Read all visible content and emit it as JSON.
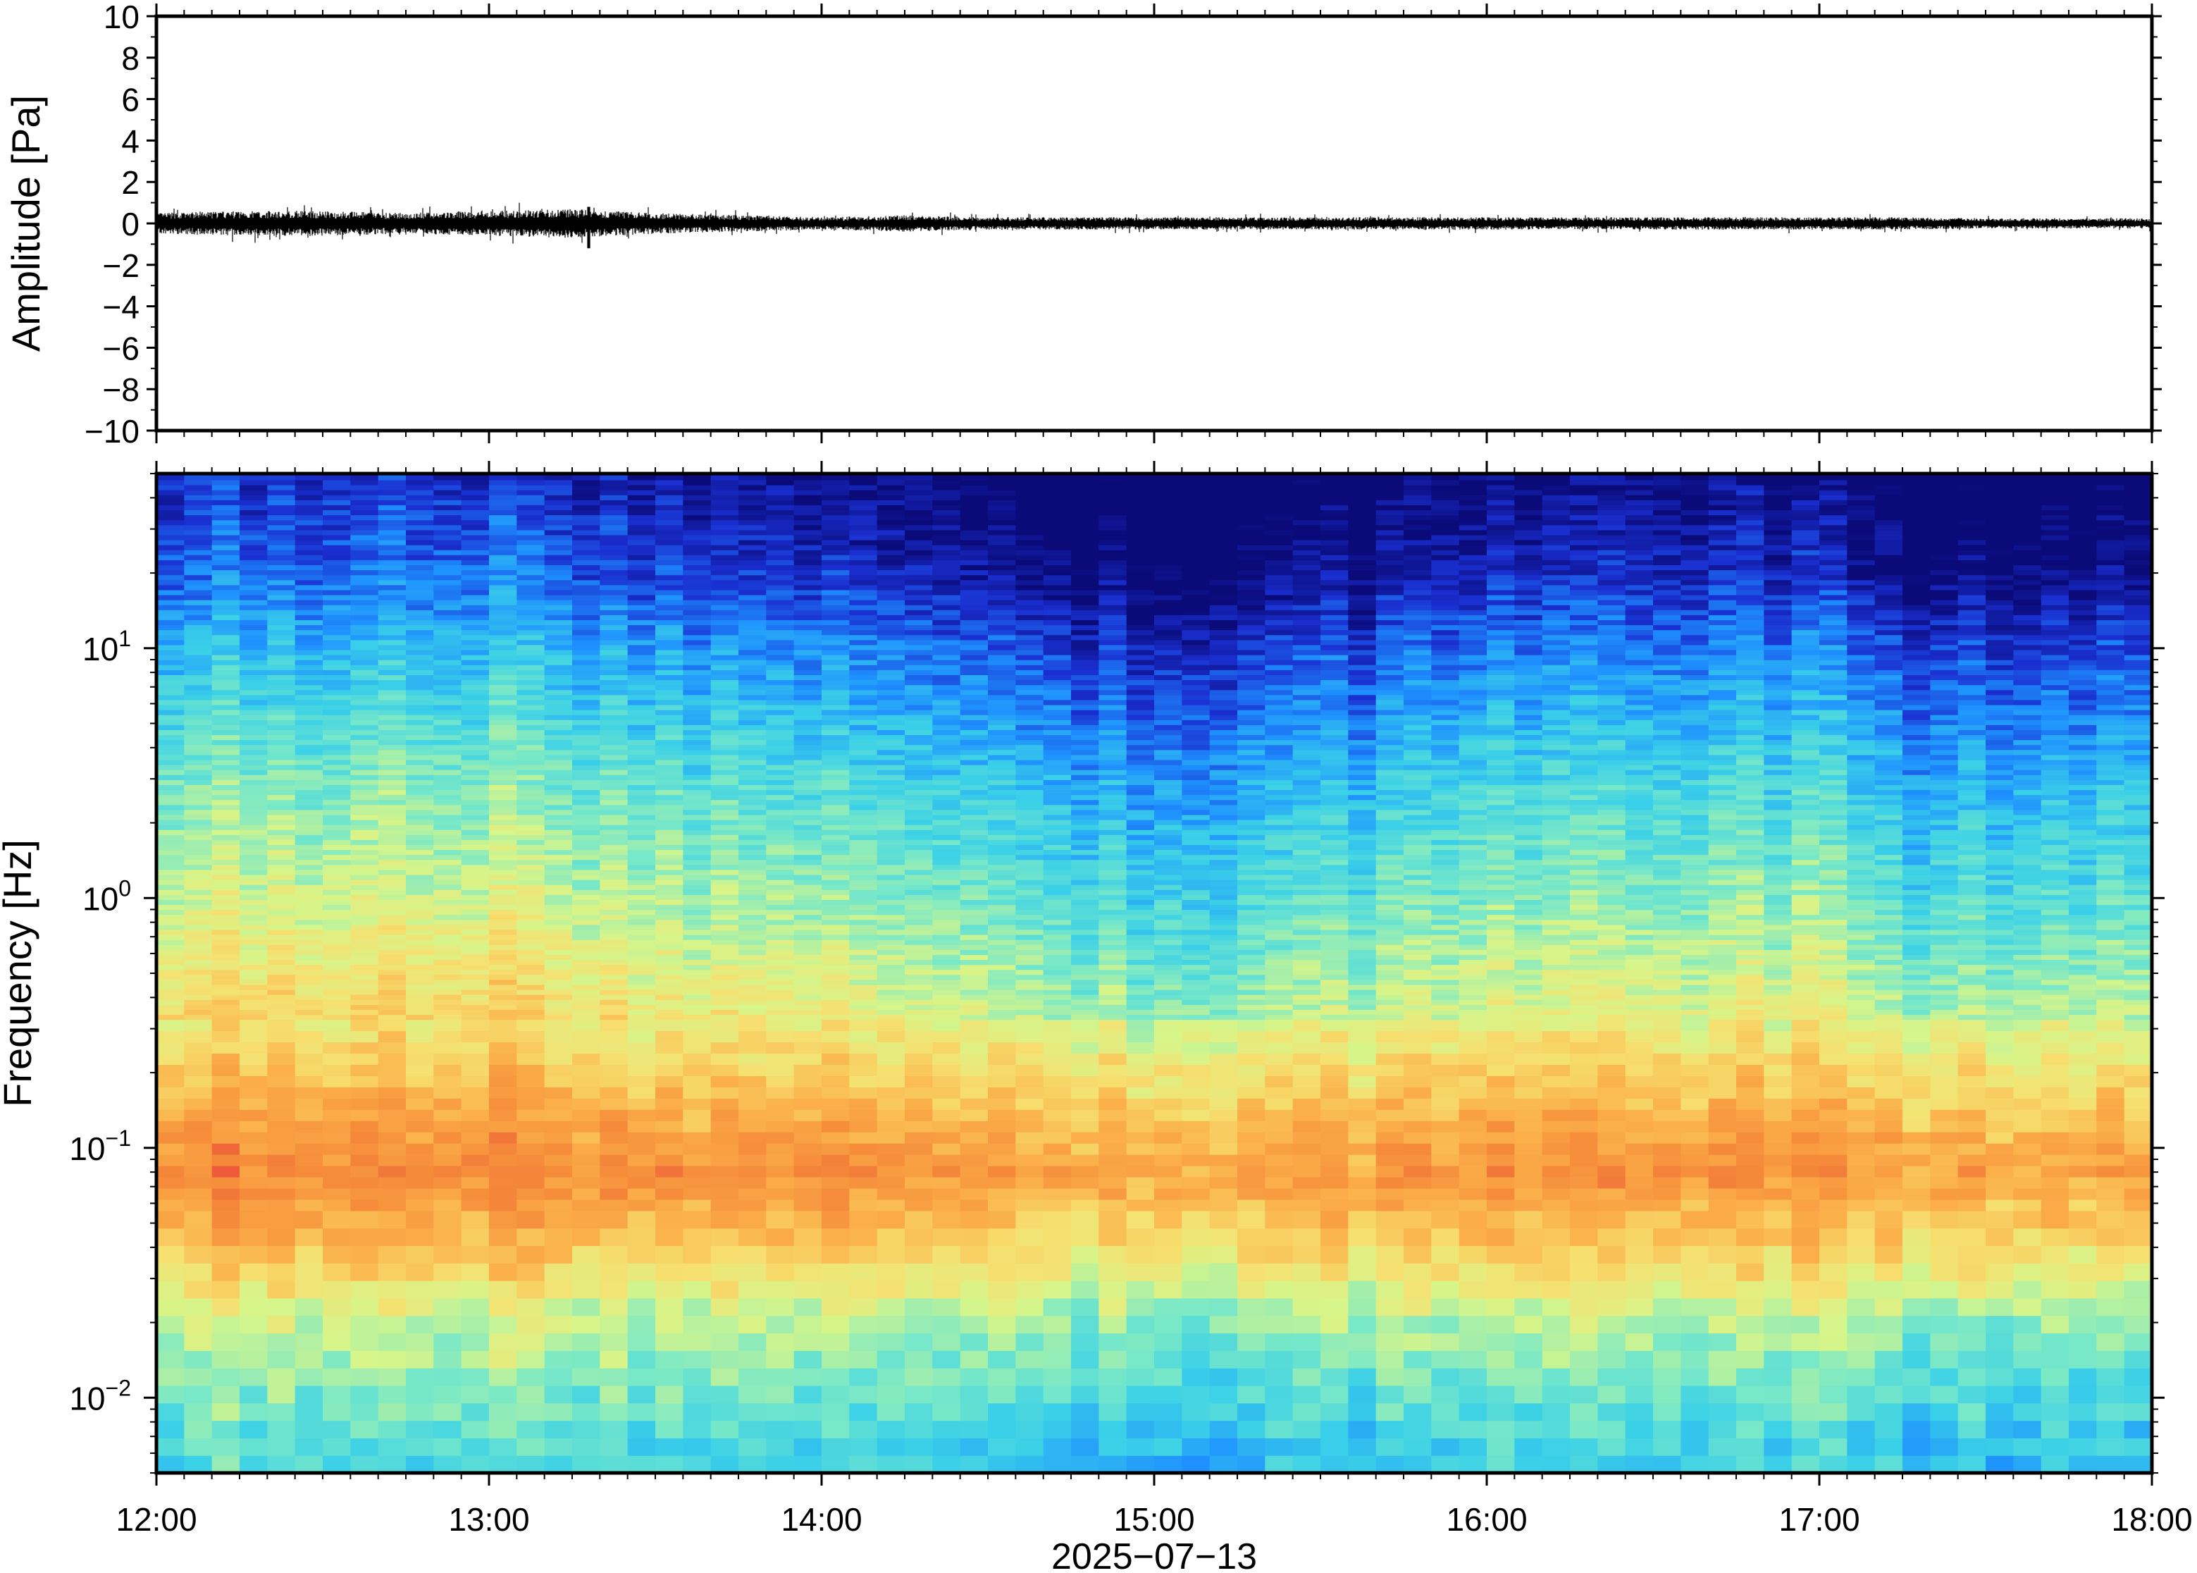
{
  "chart_data": [
    {
      "type": "line",
      "title": "",
      "xlabel": "",
      "ylabel": "Amplitude [Pa]",
      "x_tick_labels": [
        "12:00",
        "13:00",
        "14:00",
        "15:00",
        "16:00",
        "17:00",
        "18:00"
      ],
      "y_tick_labels": [
        "10",
        "8",
        "6",
        "4",
        "2",
        "0",
        "−2",
        "−4",
        "−6",
        "−8",
        "−10"
      ],
      "ylim": [
        -10,
        10
      ],
      "xlim": [
        "2025-07-13 12:00",
        "2025-07-13 18:00"
      ],
      "grid": false,
      "series": [
        {
          "x_hours": [
            12.0,
            12.25,
            12.5,
            12.75,
            13.0,
            13.25,
            13.5,
            13.75,
            14.0,
            14.25,
            14.5,
            14.75,
            15.0,
            15.25,
            15.5,
            15.75,
            16.0,
            16.25,
            16.5,
            16.75,
            17.0,
            17.25,
            17.5,
            17.75,
            18.0
          ],
          "envelope_pa": [
            0.5,
            0.6,
            0.6,
            0.5,
            0.6,
            0.7,
            0.5,
            0.4,
            0.3,
            0.4,
            0.3,
            0.3,
            0.3,
            0.3,
            0.3,
            0.3,
            0.3,
            0.3,
            0.3,
            0.3,
            0.3,
            0.3,
            0.25,
            0.25,
            0.25
          ],
          "peak_x": 13.3,
          "peak_min_pa": -1.2,
          "peak_max_pa": 0.8,
          "color": "#000000"
        }
      ]
    },
    {
      "type": "heatmap",
      "title": "",
      "xlabel": "2025−07−13",
      "ylabel": "Frequency [Hz]",
      "x_tick_labels": [
        "12:00",
        "13:00",
        "14:00",
        "15:00",
        "16:00",
        "17:00",
        "18:00"
      ],
      "y_tick_labels": [
        {
          "base": "10",
          "exp": "1",
          "value": 10
        },
        {
          "base": "10",
          "exp": "0",
          "value": 1
        },
        {
          "base": "10",
          "exp": "−1",
          "value": 0.1
        },
        {
          "base": "10",
          "exp": "−2",
          "value": 0.01
        }
      ],
      "yscale": "log",
      "ylim_hz": [
        0.005,
        50
      ],
      "xlim": [
        "2025-07-13 12:00",
        "2025-07-13 18:00"
      ],
      "colormap": "jet-like",
      "palette": [
        "#0a0a78",
        "#1a2fd0",
        "#1e90ff",
        "#3ad0e8",
        "#78e8c8",
        "#d6f58a",
        "#f6e070",
        "#fbb04a",
        "#f58a3a",
        "#ec4f3a"
      ],
      "band_levels": {
        "freqs_hz": [
          0.006,
          0.01,
          0.02,
          0.04,
          0.08,
          0.15,
          0.3,
          1,
          3,
          10,
          20,
          50
        ],
        "levels": [
          0.35,
          0.42,
          0.52,
          0.72,
          0.86,
          0.76,
          0.62,
          0.48,
          0.37,
          0.22,
          0.1,
          0.02
        ]
      },
      "time_modulation_hours": [
        12.0,
        13.0,
        14.0,
        14.7,
        15.1,
        16.0,
        17.0,
        17.25,
        18.0
      ],
      "time_modulation_level": [
        0.05,
        0.06,
        0.0,
        -0.05,
        -0.08,
        -0.02,
        0.0,
        -0.07,
        -0.03
      ]
    }
  ]
}
